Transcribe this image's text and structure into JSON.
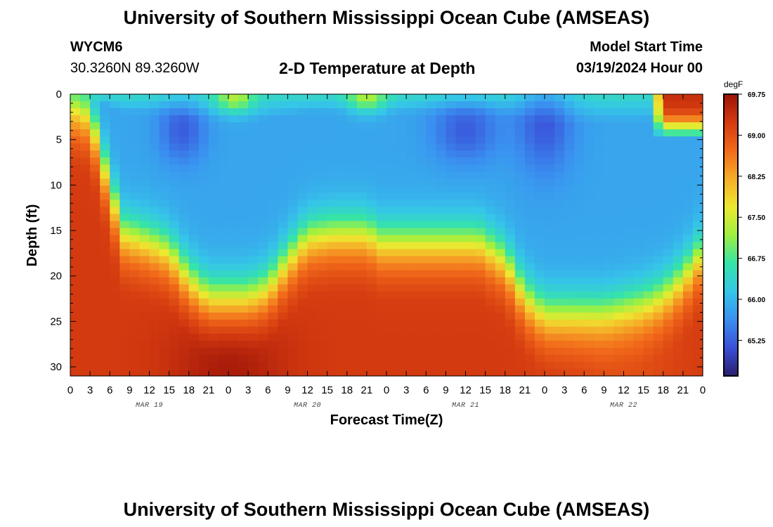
{
  "header": {
    "title": "University of Southern Mississippi Ocean Cube (AMSEAS)",
    "station_id": "WYCM6",
    "location": "30.3260N  89.3260W",
    "plot_title": "2-D Temperature at Depth",
    "model_start_label": "Model Start Time",
    "model_start_value": "03/19/2024 Hour 00"
  },
  "footer": {
    "title": "University of Southern Mississippi Ocean Cube (AMSEAS)"
  },
  "chart_data": {
    "type": "heatmap",
    "title": "2-D Temperature at Depth",
    "xlabel": "Forecast Time(Z)",
    "ylabel": "Depth (ft)",
    "x_hours": [
      0,
      96
    ],
    "y_depth_ft": [
      0,
      31
    ],
    "x_tick_labels": [
      "0",
      "3",
      "6",
      "9",
      "12",
      "15",
      "18",
      "21",
      "0",
      "3",
      "6",
      "9",
      "12",
      "15",
      "18",
      "21",
      "0",
      "3",
      "6",
      "9",
      "12",
      "15",
      "18",
      "21",
      "0",
      "3",
      "6",
      "9",
      "12",
      "15",
      "18",
      "21",
      "0"
    ],
    "y_tick_values": [
      0,
      5,
      10,
      15,
      20,
      25,
      30
    ],
    "y_tick_labels": [
      "0",
      "5",
      "10",
      "15",
      "20",
      "25",
      "30"
    ],
    "date_labels": [
      {
        "label": "MAR 19",
        "hour": 12
      },
      {
        "label": "MAR 20",
        "hour": 36
      },
      {
        "label": "MAR 21",
        "hour": 60
      },
      {
        "label": "MAR 22",
        "hour": 84
      }
    ],
    "colorbar": {
      "unit": "degF",
      "min": 64.6,
      "max": 69.75,
      "tick_values": [
        69.75,
        69.0,
        68.25,
        67.5,
        66.75,
        66.0,
        65.25
      ],
      "tick_labels": [
        "69.75",
        "69.00",
        "68.25",
        "67.50",
        "66.75",
        "66.00",
        "65.25"
      ],
      "colors": [
        "#2a1e6e",
        "#3a50d8",
        "#3a8ff0",
        "#35c6e8",
        "#35e4a8",
        "#9ef040",
        "#eee830",
        "#f5ad28",
        "#f26a1a",
        "#d43a10",
        "#9c1308"
      ]
    },
    "thermocline_depth_ft": [
      {
        "hour": 0,
        "depth": 1
      },
      {
        "hour": 3,
        "depth": 2
      },
      {
        "hour": 6,
        "depth": 10
      },
      {
        "hour": 8,
        "depth": 15
      },
      {
        "hour": 12,
        "depth": 16
      },
      {
        "hour": 15,
        "depth": 17
      },
      {
        "hour": 18,
        "depth": 20
      },
      {
        "hour": 21,
        "depth": 22
      },
      {
        "hour": 27,
        "depth": 22
      },
      {
        "hour": 30,
        "depth": 21
      },
      {
        "hour": 33,
        "depth": 18
      },
      {
        "hour": 36,
        "depth": 15.5
      },
      {
        "hour": 40,
        "depth": 15
      },
      {
        "hour": 45,
        "depth": 15
      },
      {
        "hour": 47,
        "depth": 16
      },
      {
        "hour": 50,
        "depth": 16
      },
      {
        "hour": 54,
        "depth": 16
      },
      {
        "hour": 58,
        "depth": 16
      },
      {
        "hour": 62,
        "depth": 16
      },
      {
        "hour": 66,
        "depth": 18
      },
      {
        "hour": 69,
        "depth": 22
      },
      {
        "hour": 72,
        "depth": 24
      },
      {
        "hour": 81,
        "depth": 24
      },
      {
        "hour": 87,
        "depth": 23
      },
      {
        "hour": 90,
        "depth": 22
      },
      {
        "hour": 93,
        "depth": 20
      },
      {
        "hour": 96,
        "depth": 17
      }
    ],
    "surface_warm_patch": {
      "hour_start": 88,
      "hour_end": 96,
      "depth_end_ft": 5
    }
  }
}
